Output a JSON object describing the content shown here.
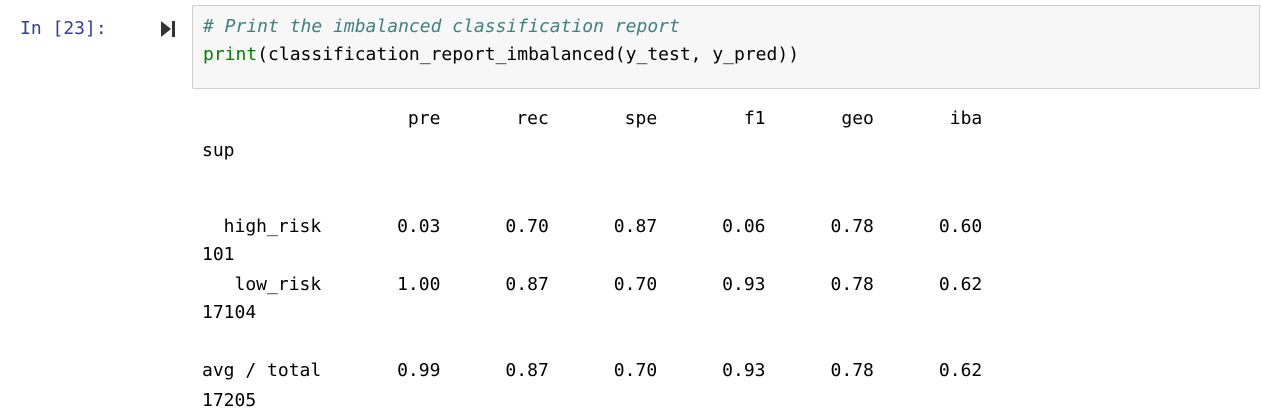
{
  "cell": {
    "prompt": "In [23]:",
    "code": {
      "line1": "# Print the imbalanced classification report",
      "line2_func": "print",
      "line2_rest": "(classification_report_imbalanced(y_test, y_pred))"
    },
    "output": {
      "header": "                   pre       rec       spe        f1       geo       iba",
      "header_wrap": "sup",
      "rows": [
        {
          "line": "  high_risk       0.03      0.70      0.87      0.06      0.78      0.60",
          "wrap": "101"
        },
        {
          "line": "   low_risk       1.00      0.87      0.70      0.93      0.78      0.62",
          "wrap": "17104"
        },
        {
          "line": "avg / total       0.99      0.87      0.70      0.93      0.78      0.62",
          "wrap": "17205"
        }
      ]
    }
  },
  "colors": {
    "prompt": "#303F9F",
    "comment": "#408080",
    "builtin": "#008000",
    "input_bg": "#f7f7f7"
  },
  "icons": {
    "run": "step-forward-icon"
  }
}
